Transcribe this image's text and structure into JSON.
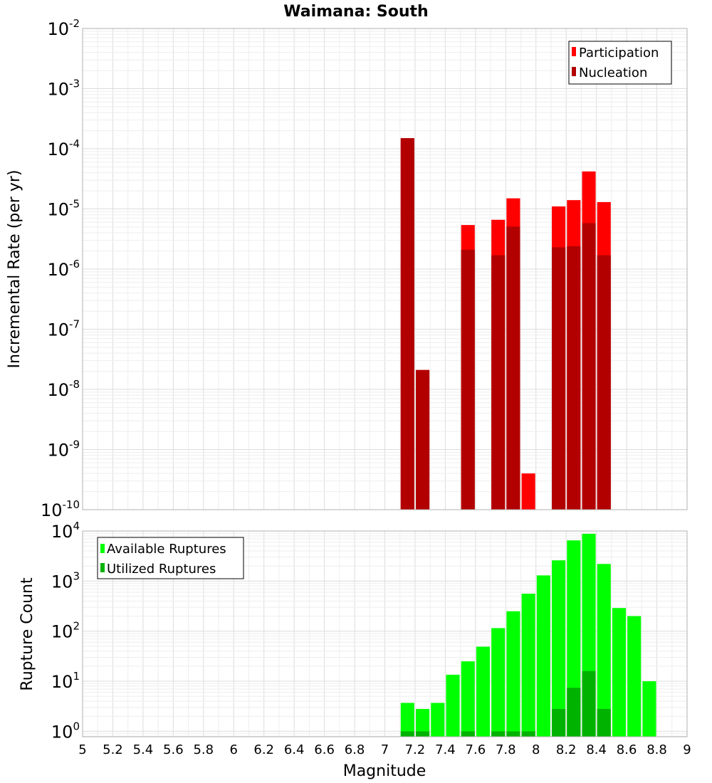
{
  "chart_data": [
    {
      "type": "bar",
      "title": "Waimana: South",
      "xlabel": "",
      "ylabel": "Incremental Rate (per yr)",
      "y_scale": "log",
      "ylim": [
        1e-10,
        0.01
      ],
      "xlim": [
        5,
        9
      ],
      "y_ticks": [
        {
          "base": "10",
          "exp": "-10"
        },
        {
          "base": "10",
          "exp": "-9"
        },
        {
          "base": "10",
          "exp": "-8"
        },
        {
          "base": "10",
          "exp": "-7"
        },
        {
          "base": "10",
          "exp": "-6"
        },
        {
          "base": "10",
          "exp": "-5"
        },
        {
          "base": "10",
          "exp": "-4"
        },
        {
          "base": "10",
          "exp": "-3"
        },
        {
          "base": "10",
          "exp": "-2"
        }
      ],
      "legend_position": "top-right",
      "grid": true,
      "x": [
        7.15,
        7.25,
        7.55,
        7.75,
        7.85,
        7.95,
        8.15,
        8.25,
        8.35,
        8.45
      ],
      "series": [
        {
          "name": "Participation",
          "color": "#ff0000",
          "values": [
            0.00015,
            2.1e-08,
            5.4e-06,
            6.6e-06,
            1.5e-05,
            4e-10,
            1.1e-05,
            1.4e-05,
            4.2e-05,
            1.3e-05
          ]
        },
        {
          "name": "Nucleation",
          "color": "#b20000",
          "values": [
            0.00015,
            2.1e-08,
            2.1e-06,
            1.7e-06,
            5.1e-06,
            0,
            2.3e-06,
            2.4e-06,
            5.8e-06,
            1.7e-06
          ]
        }
      ]
    },
    {
      "type": "bar",
      "title": "",
      "xlabel": "Magnitude",
      "ylabel": "Rupture Count",
      "y_scale": "log",
      "ylim": [
        0.78,
        10000
      ],
      "xlim": [
        5,
        9
      ],
      "y_ticks": [
        {
          "base": "10",
          "exp": "0"
        },
        {
          "base": "10",
          "exp": "1"
        },
        {
          "base": "10",
          "exp": "2"
        },
        {
          "base": "10",
          "exp": "3"
        },
        {
          "base": "10",
          "exp": "4"
        }
      ],
      "x_ticks": [
        "5",
        "5.2",
        "5.4",
        "5.6",
        "5.8",
        "6",
        "6.2",
        "6.4",
        "6.6",
        "6.8",
        "7",
        "7.2",
        "7.4",
        "7.6",
        "7.8",
        "8",
        "8.2",
        "8.4",
        "8.6",
        "8.8",
        "9"
      ],
      "legend_position": "top-left",
      "grid": true,
      "x": [
        7.15,
        7.25,
        7.35,
        7.45,
        7.55,
        7.65,
        7.75,
        7.85,
        7.95,
        8.05,
        8.15,
        8.25,
        8.35,
        8.45,
        8.55,
        8.65,
        8.75
      ],
      "series": [
        {
          "name": "Available Ruptures",
          "color": "#00ff00",
          "values": [
            3.7,
            2.8,
            3.7,
            13.5,
            25,
            49,
            115,
            250,
            560,
            1300,
            2600,
            6500,
            8800,
            2200,
            290,
            200,
            10
          ]
        },
        {
          "name": "Utilized Ruptures",
          "color": "#00b200",
          "values": [
            1,
            1,
            0,
            0,
            1,
            0,
            1,
            1,
            1,
            0,
            2.8,
            7.4,
            16,
            2.8,
            0,
            0,
            0
          ]
        }
      ]
    }
  ]
}
